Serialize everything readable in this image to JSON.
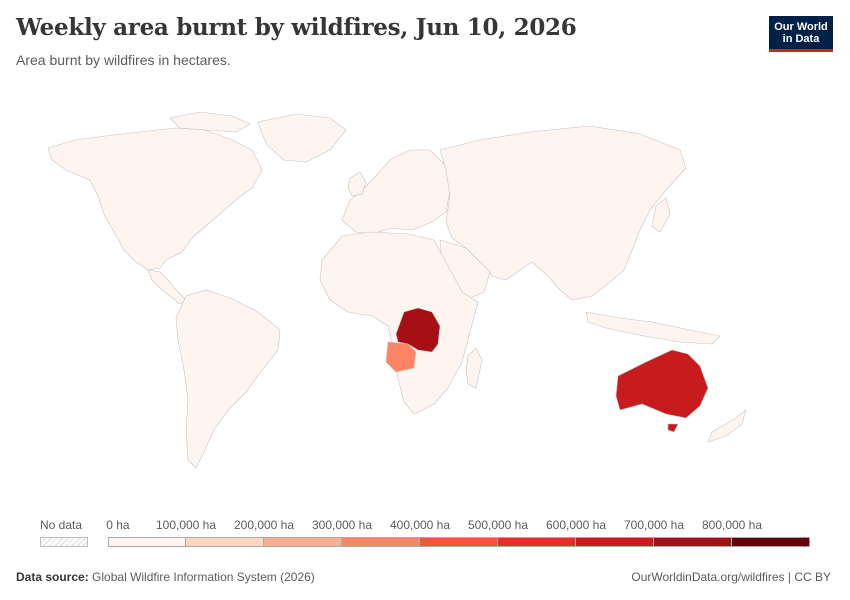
{
  "header": {
    "title": "Weekly area burnt by wildfires, Jun 10, 2026",
    "subtitle": "Area burnt by wildfires in hectares."
  },
  "logo": {
    "line1": "Our World",
    "line2": "in Data"
  },
  "legend": {
    "no_data_label": "No data",
    "bins": [
      {
        "label": "0 ha",
        "color": "#fff5f0"
      },
      {
        "label": "100,000 ha",
        "color": "#fdd6c4"
      },
      {
        "label": "200,000 ha",
        "color": "#fcae91"
      },
      {
        "label": "300,000 ha",
        "color": "#fb8565"
      },
      {
        "label": "400,000 ha",
        "color": "#f6553d"
      },
      {
        "label": "500,000 ha",
        "color": "#e33026"
      },
      {
        "label": "600,000 ha",
        "color": "#c81b1e"
      },
      {
        "label": "700,000 ha",
        "color": "#a50f15"
      },
      {
        "label": "800,000 ha",
        "color": "#67000d"
      }
    ]
  },
  "map": {
    "base_color": "#fff5f0",
    "highlighted_regions": [
      {
        "name": "Democratic Republic of Congo",
        "color": "#a50f15"
      },
      {
        "name": "Angola",
        "color": "#fb8565"
      },
      {
        "name": "Australia",
        "color": "#c81b1e"
      }
    ]
  },
  "footer": {
    "source_label": "Data source:",
    "source_text": "Global Wildfire Information System (2026)",
    "credit": "OurWorldinData.org/wildfires | CC BY"
  }
}
